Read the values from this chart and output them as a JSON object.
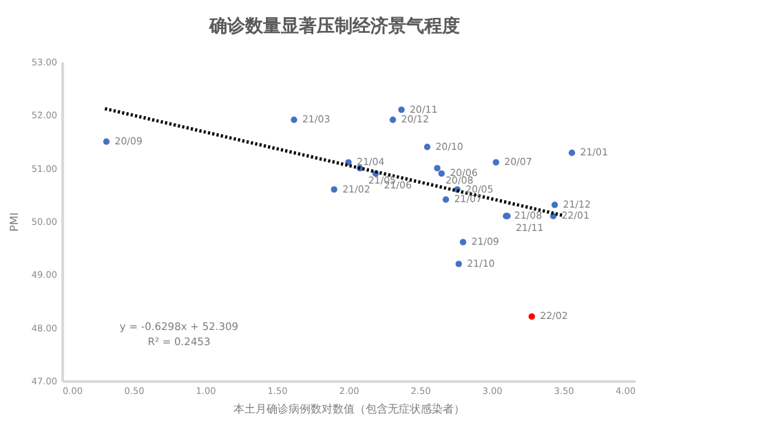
{
  "chart_data": {
    "type": "scatter",
    "title": "确诊数量显著压制经济景气程度",
    "xlabel": "本土月确诊病例数对数值（包含无症状感染者）",
    "ylabel": "PMI",
    "series": [
      {
        "color": "#4472c4",
        "x": [
          2.76,
          2.65,
          3.03,
          2.62,
          0.31,
          2.55,
          2.37,
          2.31,
          3.56,
          1.9,
          1.62,
          2.0,
          2.08,
          2.19,
          2.68,
          3.1,
          2.8,
          2.77,
          3.11,
          3.44,
          3.43
        ],
        "values": [
          50.6,
          50.9,
          51.11,
          51.0,
          51.5,
          51.4,
          52.1,
          51.91,
          51.29,
          50.6,
          51.91,
          51.11,
          51.0,
          50.9,
          50.41,
          50.1,
          49.61,
          49.2,
          50.1,
          50.31,
          50.1
        ]
      },
      {
        "color": "#ff0000",
        "x": [
          3.28
        ],
        "values": [
          48.21
        ]
      },
      {
        "type": "line",
        "color": "#000000",
        "marker": "none",
        "line_style": "dotted",
        "x": [
          0.3,
          3.5
        ],
        "values": [
          52.12,
          50.11
        ]
      }
    ],
    "xlim": [
      0,
      4
    ],
    "ylim": [
      47,
      53
    ],
    "xticks": [
      {
        "value": 0,
        "label": "0.00"
      },
      {
        "value": 0.5,
        "label": "0.50"
      },
      {
        "value": 1,
        "label": "1.00"
      },
      {
        "value": 1.5,
        "label": "1.50"
      },
      {
        "value": 2,
        "label": "2.00"
      },
      {
        "value": 2.5,
        "label": "2.50"
      },
      {
        "value": 3,
        "label": "3.00"
      },
      {
        "value": 3.5,
        "label": "3.50"
      },
      {
        "value": 4,
        "label": "4.00"
      }
    ],
    "yticks": [
      {
        "value": 47,
        "label": "47.00"
      },
      {
        "value": 48,
        "label": "48.00"
      },
      {
        "value": 49,
        "label": "49.00"
      },
      {
        "value": 50,
        "label": "50.00"
      },
      {
        "value": 51,
        "label": "51.00"
      },
      {
        "value": 52,
        "label": "52.00"
      },
      {
        "value": 53,
        "label": "53.00"
      }
    ],
    "annotations": [
      "y = -0.6298x + 52.309",
      "R² = 0.2453",
      {
        "text": "20/05",
        "x": 2.76,
        "y": 50.6
      },
      {
        "text": "20/06",
        "x": 2.65,
        "y": 50.9
      },
      {
        "text": "20/07",
        "x": 3.03,
        "y": 51.11
      },
      {
        "text": "20/08",
        "x": 2.62,
        "y": 51.0
      },
      {
        "text": "20/09",
        "x": 0.31,
        "y": 51.5
      },
      {
        "text": "20/10",
        "x": 2.55,
        "y": 51.4
      },
      {
        "text": "20/11",
        "x": 2.37,
        "y": 52.1
      },
      {
        "text": "20/12",
        "x": 2.31,
        "y": 51.91
      },
      {
        "text": "21/01",
        "x": 3.56,
        "y": 51.29
      },
      {
        "text": "21/02",
        "x": 1.9,
        "y": 50.6
      },
      {
        "text": "21/03",
        "x": 1.62,
        "y": 51.91
      },
      {
        "text": "21/04",
        "x": 2.0,
        "y": 51.11
      },
      {
        "text": "21/05",
        "x": 2.08,
        "y": 51.0
      },
      {
        "text": "21/06",
        "x": 2.19,
        "y": 50.9
      },
      {
        "text": "21/07",
        "x": 2.68,
        "y": 50.41
      },
      {
        "text": "21/08",
        "x": 3.1,
        "y": 50.1
      },
      {
        "text": "21/09",
        "x": 2.8,
        "y": 49.61
      },
      {
        "text": "21/10",
        "x": 2.77,
        "y": 49.2
      },
      {
        "text": "21/11",
        "x": 3.11,
        "y": 50.1
      },
      {
        "text": "21/12",
        "x": 3.44,
        "y": 50.31
      },
      {
        "text": "22/01",
        "x": 3.43,
        "y": 50.1
      },
      {
        "text": "22/02",
        "x": 3.28,
        "y": 48.21
      }
    ],
    "marker": "circle",
    "grid": false
  }
}
